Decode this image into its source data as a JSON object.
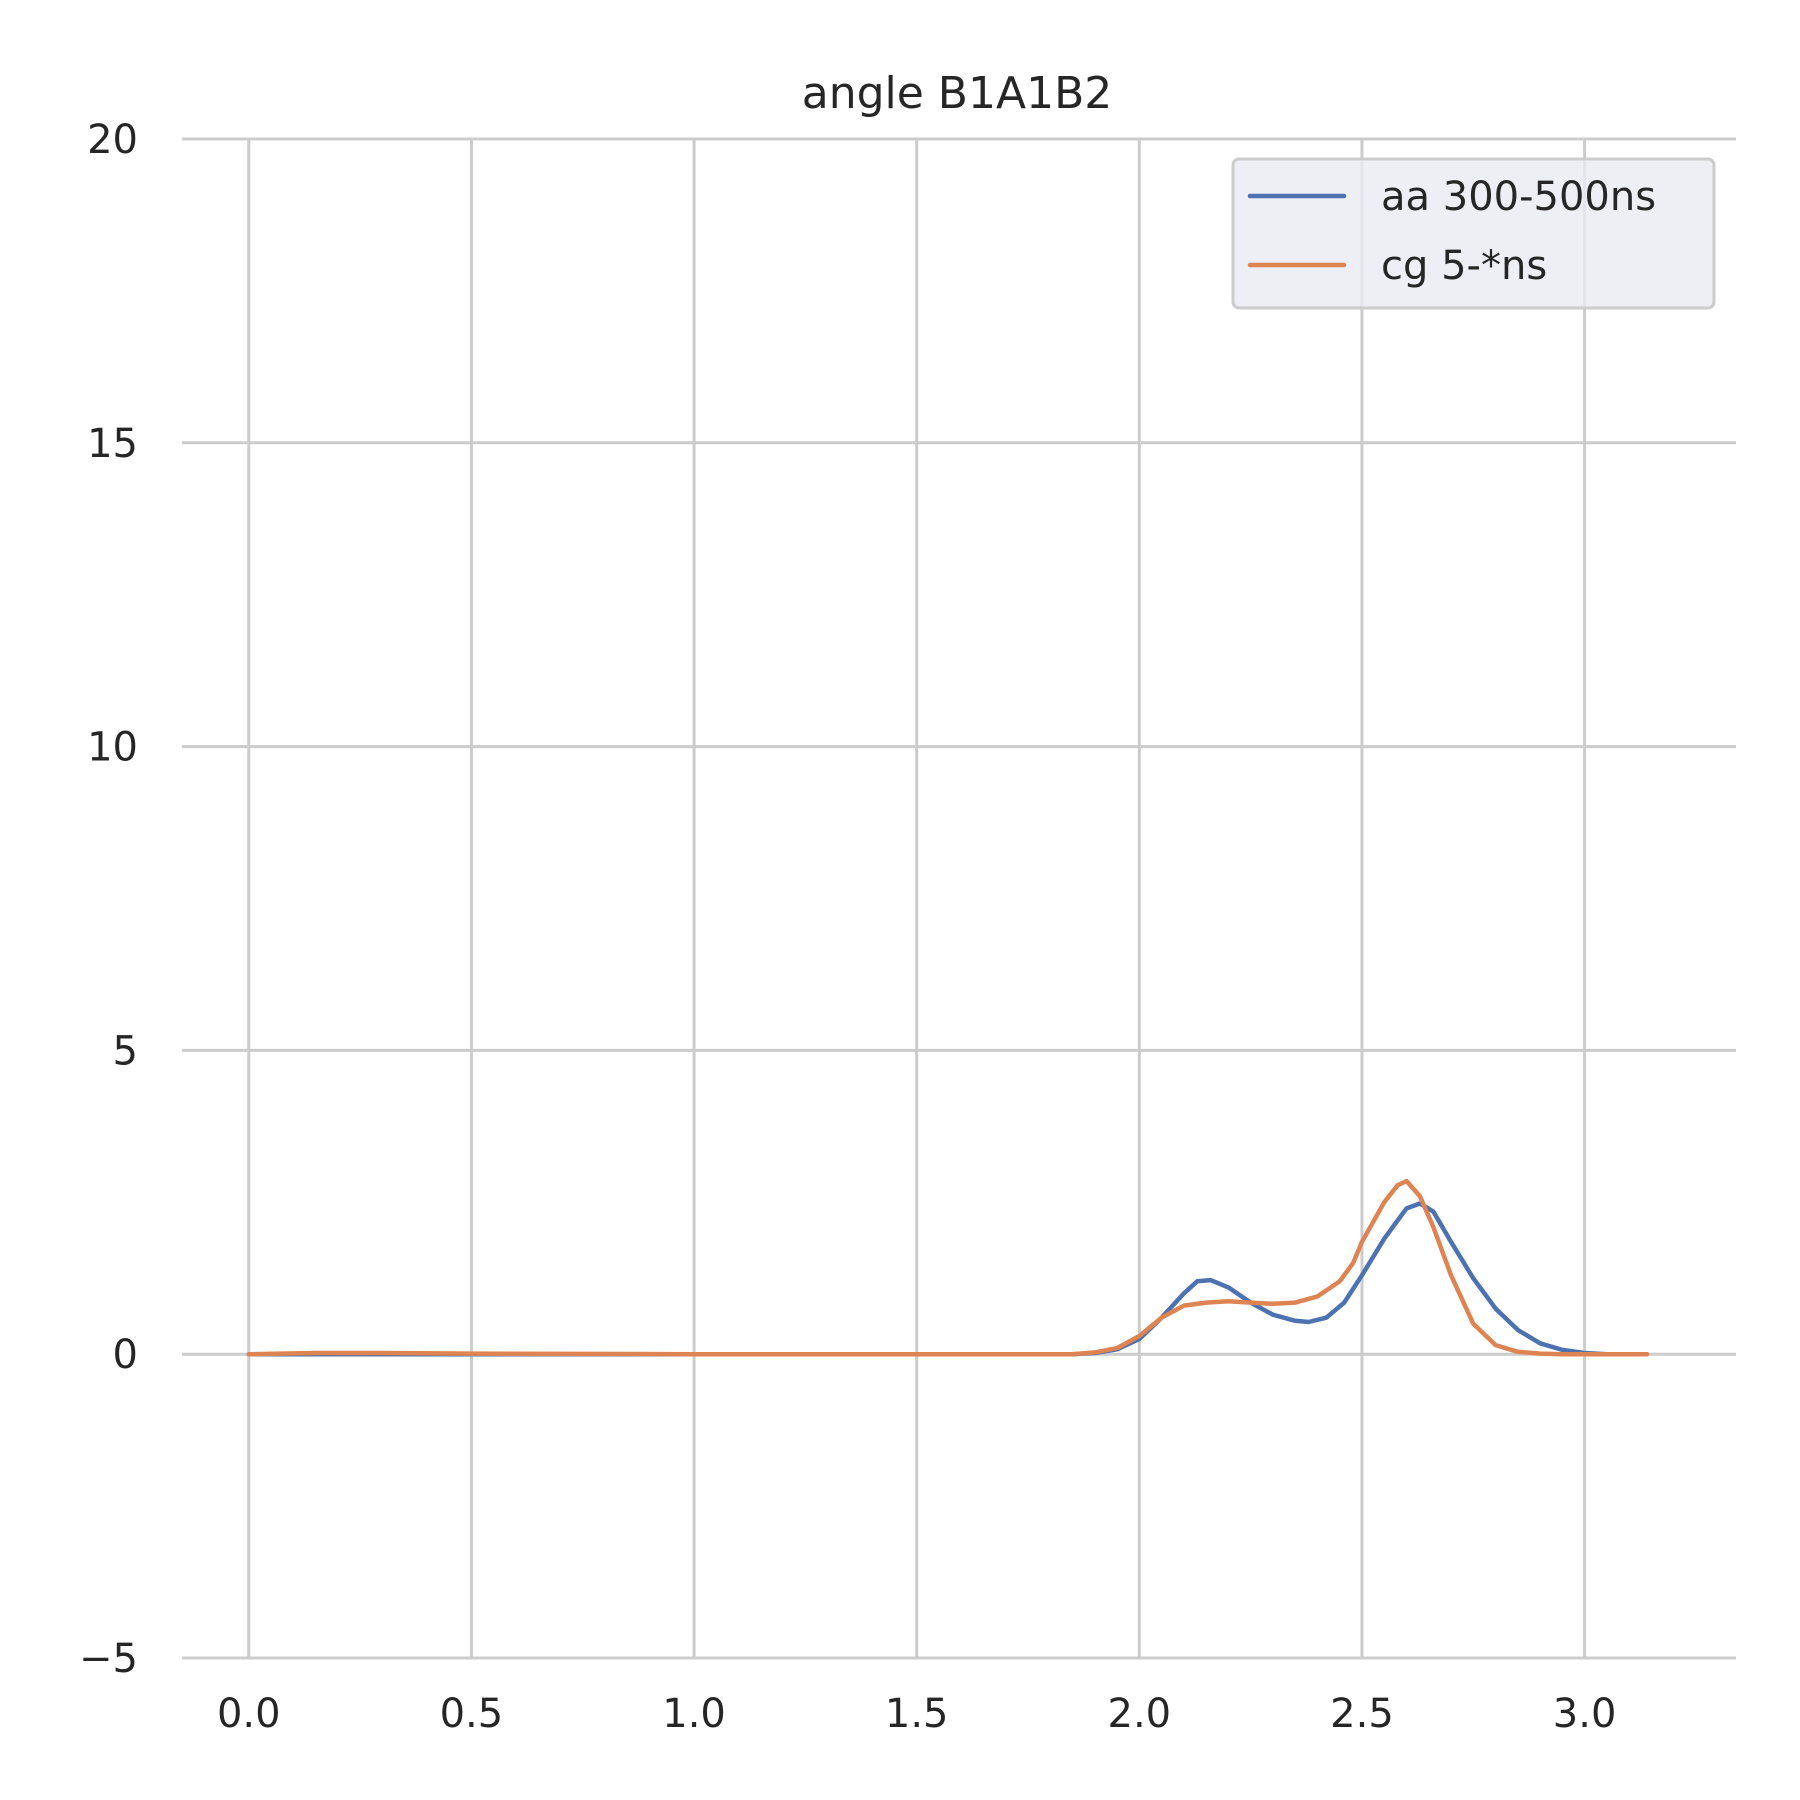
{
  "chart_data": {
    "type": "line",
    "title": "angle B1A1B2",
    "xlabel": "",
    "ylabel": "",
    "xlim": [
      -0.15,
      3.34
    ],
    "ylim": [
      -5,
      20
    ],
    "xticks": [
      0.0,
      0.5,
      1.0,
      1.5,
      2.0,
      2.5,
      3.0
    ],
    "xtick_labels": [
      "0.0",
      "0.5",
      "1.0",
      "1.5",
      "2.0",
      "2.5",
      "3.0"
    ],
    "yticks": [
      -5,
      0,
      5,
      10,
      15,
      20
    ],
    "ytick_labels": [
      "−5",
      "0",
      "5",
      "10",
      "15",
      "20"
    ],
    "grid": true,
    "legend_position": "top-right",
    "series": [
      {
        "name": "aa 300-500ns",
        "color": "#4c72b0",
        "x": [
          0.0,
          0.5,
          1.0,
          1.5,
          1.85,
          1.9,
          1.95,
          2.0,
          2.05,
          2.1,
          2.13,
          2.16,
          2.2,
          2.25,
          2.3,
          2.35,
          2.38,
          2.42,
          2.46,
          2.5,
          2.55,
          2.6,
          2.63,
          2.66,
          2.7,
          2.75,
          2.8,
          2.85,
          2.9,
          2.95,
          3.0,
          3.05,
          3.1,
          3.14
        ],
        "values": [
          0.0,
          0.0,
          0.0,
          0.0,
          0.0,
          0.02,
          0.08,
          0.25,
          0.6,
          1.0,
          1.2,
          1.22,
          1.1,
          0.85,
          0.65,
          0.55,
          0.53,
          0.6,
          0.85,
          1.3,
          1.9,
          2.4,
          2.48,
          2.35,
          1.85,
          1.25,
          0.75,
          0.4,
          0.18,
          0.07,
          0.02,
          0.0,
          0.0,
          0.0
        ]
      },
      {
        "name": "cg 5-*ns",
        "color": "#dd8452",
        "x": [
          0.0,
          0.15,
          0.3,
          0.5,
          1.0,
          1.5,
          1.85,
          1.9,
          1.95,
          2.0,
          2.05,
          2.1,
          2.15,
          2.2,
          2.25,
          2.3,
          2.35,
          2.4,
          2.45,
          2.48,
          2.5,
          2.55,
          2.58,
          2.6,
          2.63,
          2.66,
          2.7,
          2.75,
          2.8,
          2.85,
          2.9,
          2.95,
          3.0,
          3.1,
          3.14
        ],
        "values": [
          0.0,
          0.02,
          0.02,
          0.01,
          0.0,
          0.0,
          0.0,
          0.03,
          0.1,
          0.3,
          0.6,
          0.8,
          0.85,
          0.87,
          0.85,
          0.83,
          0.85,
          0.95,
          1.2,
          1.5,
          1.85,
          2.5,
          2.78,
          2.85,
          2.6,
          2.1,
          1.3,
          0.5,
          0.15,
          0.04,
          0.01,
          0.0,
          0.0,
          0.0,
          0.0
        ]
      }
    ]
  }
}
